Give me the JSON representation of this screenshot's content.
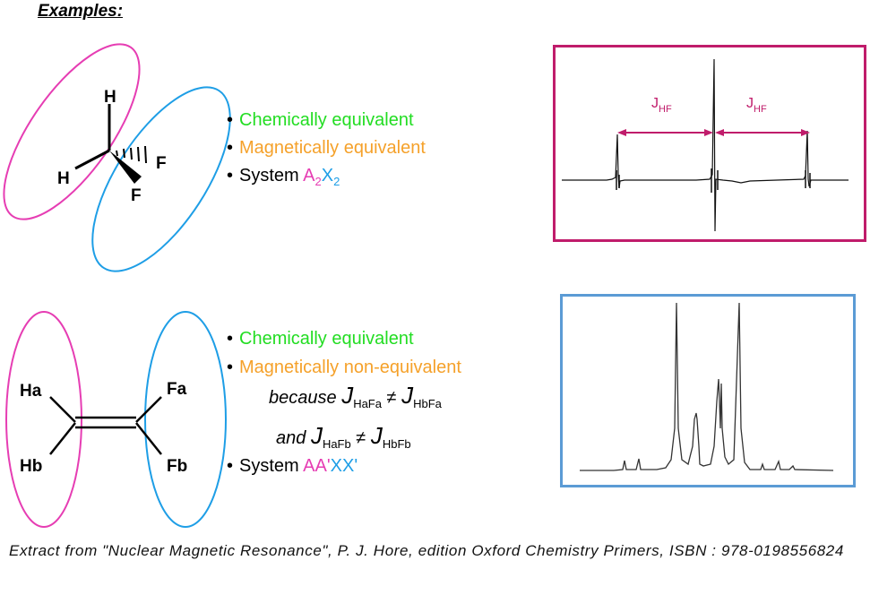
{
  "title": "Examples:",
  "example1": {
    "atoms": {
      "h_top": "H",
      "h_left": "H",
      "f_right": "F",
      "f_bottom": "F"
    },
    "bullet1": "Chemically equivalent",
    "bullet2": "Magnetically equivalent",
    "system_prefix": "System ",
    "system_a": "A",
    "system_a_sub": "2",
    "system_x": "X",
    "system_x_sub": "2",
    "spectrum_labels": {
      "j_left": "J",
      "j_left_sub": "HF",
      "j_right": "J",
      "j_right_sub": "HF"
    }
  },
  "example2": {
    "atoms": {
      "ha": "Ha",
      "hb": "Hb",
      "fa": "Fa",
      "fb": "Fb"
    },
    "bullet1": "Chemically equivalent",
    "bullet2": "Magnetically non-equivalent",
    "because_word": "because",
    "j1": "J",
    "j1_sub": "HaFa",
    "neq": "≠",
    "j2": "J",
    "j2_sub": "HbFa",
    "and_word": "and",
    "j3": "J",
    "j3_sub": "HaFb",
    "j4": "J",
    "j4_sub": "HbFb",
    "system_prefix": "System ",
    "system_aa": "AA'",
    "system_xx": "XX'"
  },
  "colors": {
    "green": "#22dd22",
    "orange": "#f5a12a",
    "pink": "#e63db3",
    "blue": "#1e9ee6",
    "box1": "#c01c6b",
    "box2": "#5b9bd5"
  },
  "caption": "Extract from \"Nuclear Magnetic Resonance\",  P. J. Hore, edition Oxford Chemistry Primers, ISBN : 978-0198556824"
}
